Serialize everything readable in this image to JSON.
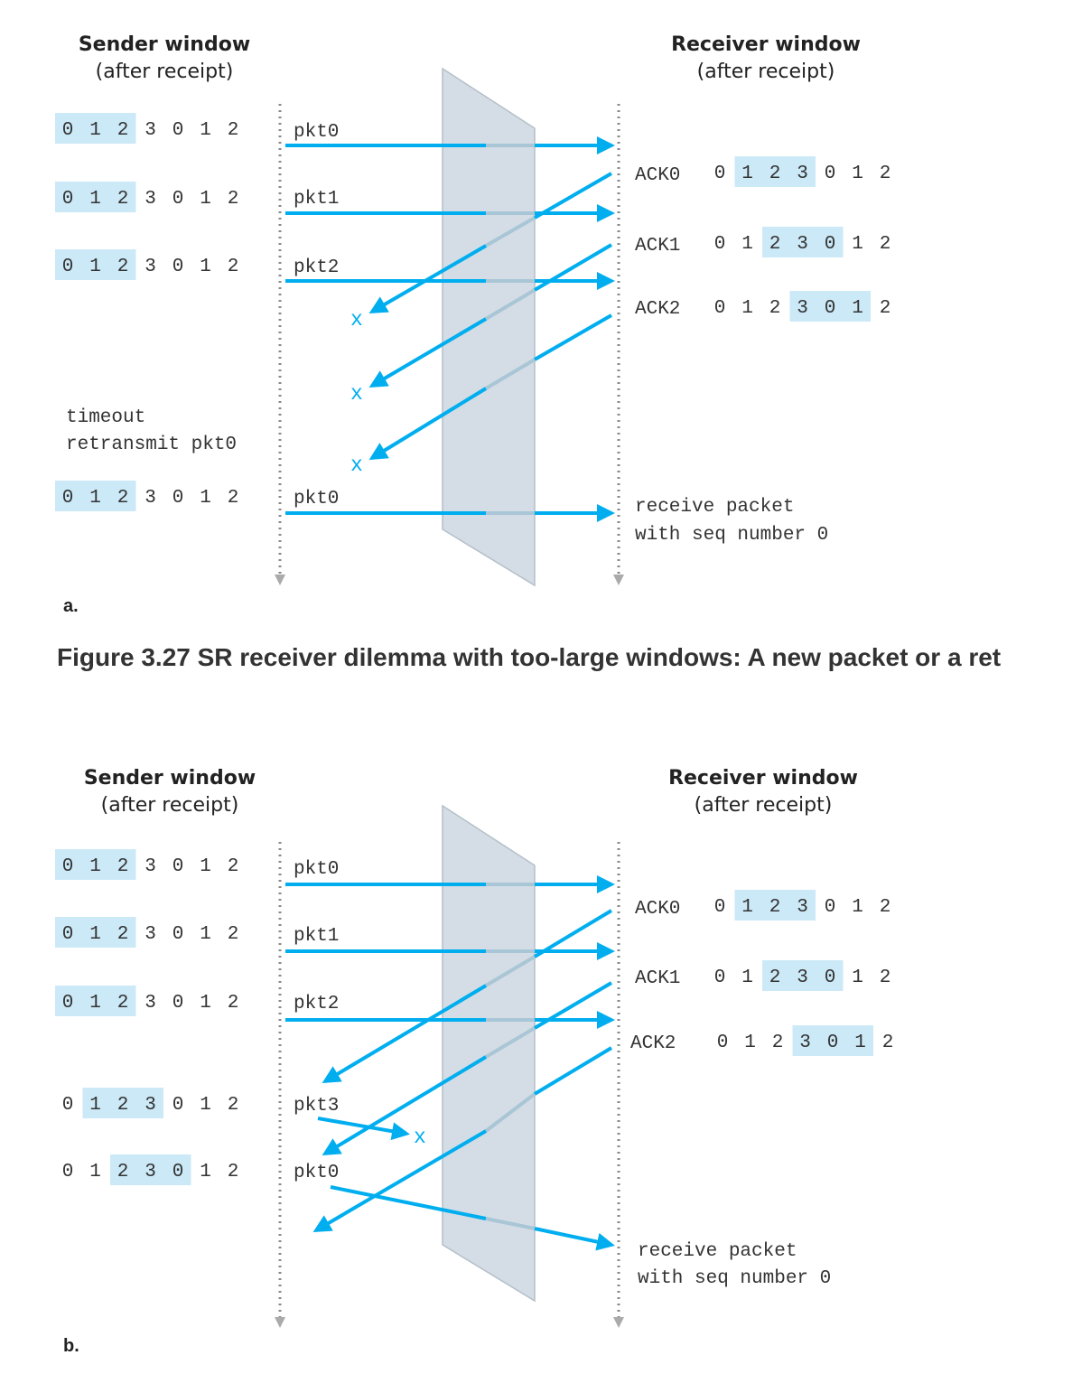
{
  "caption": "Figure 3.27 SR receiver dilemma with too-large windows: A new packet or a ret",
  "colors": {
    "arrow": "#00aeef",
    "highlight": "#cce9f7",
    "channel": "#d4dde5",
    "timeline": "#888888"
  },
  "panels": [
    {
      "label": "a.",
      "sender_header": [
        "Sender window",
        "(after receipt)"
      ],
      "receiver_header": [
        "Receiver window",
        "(after receipt)"
      ],
      "sender_rows": [
        {
          "digits": [
            "0",
            "1",
            "2",
            "3",
            "0",
            "1",
            "2"
          ],
          "highlight": [
            0,
            2
          ],
          "packet": "pkt0"
        },
        {
          "digits": [
            "0",
            "1",
            "2",
            "3",
            "0",
            "1",
            "2"
          ],
          "highlight": [
            0,
            2
          ],
          "packet": "pkt1"
        },
        {
          "digits": [
            "0",
            "1",
            "2",
            "3",
            "0",
            "1",
            "2"
          ],
          "highlight": [
            0,
            2
          ],
          "packet": "pkt2"
        },
        {
          "digits": [
            "0",
            "1",
            "2",
            "3",
            "0",
            "1",
            "2"
          ],
          "highlight": [
            0,
            2
          ],
          "packet": "pkt0"
        }
      ],
      "receiver_rows": [
        {
          "ack": "ACK0",
          "digits": [
            "0",
            "1",
            "2",
            "3",
            "0",
            "1",
            "2"
          ],
          "highlight": [
            1,
            3
          ]
        },
        {
          "ack": "ACK1",
          "digits": [
            "0",
            "1",
            "2",
            "3",
            "0",
            "1",
            "2"
          ],
          "highlight": [
            2,
            4
          ]
        },
        {
          "ack": "ACK2",
          "digits": [
            "0",
            "1",
            "2",
            "3",
            "0",
            "1",
            "2"
          ],
          "highlight": [
            3,
            5
          ]
        }
      ],
      "lost_marks": [
        "x",
        "x",
        "x"
      ],
      "sender_notes": [
        "timeout",
        "retransmit pkt0"
      ],
      "receiver_notes": [
        "receive packet",
        "with seq number 0"
      ]
    },
    {
      "label": "b.",
      "sender_header": [
        "Sender window",
        "(after receipt)"
      ],
      "receiver_header": [
        "Receiver window",
        "(after receipt)"
      ],
      "sender_rows": [
        {
          "digits": [
            "0",
            "1",
            "2",
            "3",
            "0",
            "1",
            "2"
          ],
          "highlight": [
            0,
            2
          ],
          "packet": "pkt0"
        },
        {
          "digits": [
            "0",
            "1",
            "2",
            "3",
            "0",
            "1",
            "2"
          ],
          "highlight": [
            0,
            2
          ],
          "packet": "pkt1"
        },
        {
          "digits": [
            "0",
            "1",
            "2",
            "3",
            "0",
            "1",
            "2"
          ],
          "highlight": [
            0,
            2
          ],
          "packet": "pkt2"
        },
        {
          "digits": [
            "0",
            "1",
            "2",
            "3",
            "0",
            "1",
            "2"
          ],
          "highlight": [
            1,
            3
          ],
          "packet": "pkt3"
        },
        {
          "digits": [
            "0",
            "1",
            "2",
            "3",
            "0",
            "1",
            "2"
          ],
          "highlight": [
            2,
            4
          ],
          "packet": "pkt0"
        }
      ],
      "receiver_rows": [
        {
          "ack": "ACK0",
          "digits": [
            "0",
            "1",
            "2",
            "3",
            "0",
            "1",
            "2"
          ],
          "highlight": [
            1,
            3
          ]
        },
        {
          "ack": "ACK1",
          "digits": [
            "0",
            "1",
            "2",
            "3",
            "0",
            "1",
            "2"
          ],
          "highlight": [
            2,
            4
          ]
        },
        {
          "ack": "ACK2",
          "digits": [
            "0",
            "1",
            "2",
            "3",
            "0",
            "1",
            "2"
          ],
          "highlight": [
            3,
            5
          ]
        }
      ],
      "lost_marks": [
        "x"
      ],
      "receiver_notes": [
        "receive packet",
        "with seq number 0"
      ]
    }
  ]
}
